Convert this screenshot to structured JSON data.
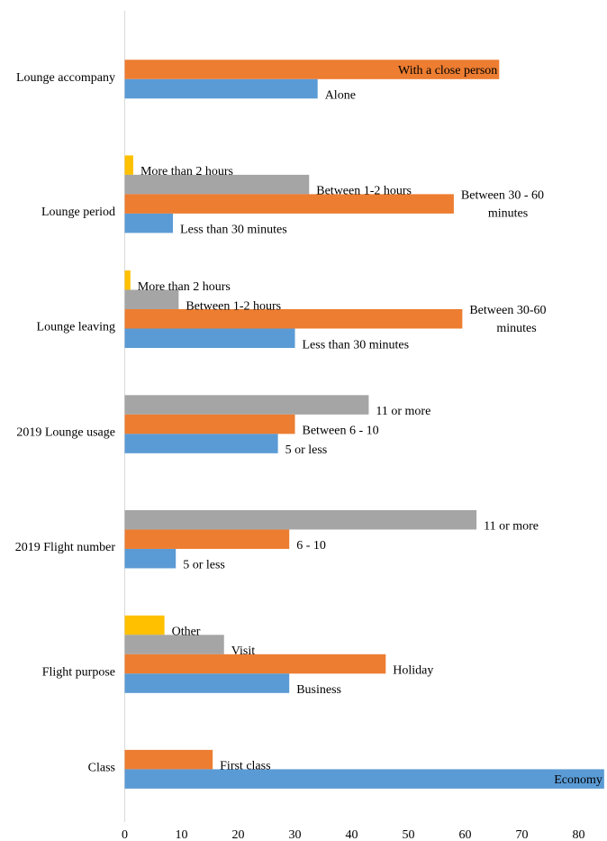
{
  "chart_data": {
    "type": "bar",
    "orientation": "horizontal",
    "xlim": [
      0,
      85
    ],
    "xticks": [
      0,
      10,
      20,
      30,
      40,
      50,
      60,
      70,
      80
    ],
    "grid": false,
    "legend": "none",
    "colors": {
      "blue": "#5b9bd5",
      "orange": "#ed7d31",
      "gray": "#a5a5a5",
      "yellow": "#ffc000"
    },
    "groups": [
      {
        "name": "Lounge accompany",
        "bars": [
          {
            "label": "With a close person",
            "value": 66,
            "color": "orange",
            "label_position": "inside-end"
          },
          {
            "label": "Alone",
            "value": 34,
            "color": "blue"
          }
        ]
      },
      {
        "name": "Lounge period",
        "bars": [
          {
            "label": "More than 2 hours",
            "value": 1.5,
            "color": "yellow"
          },
          {
            "label": "Between 1-2 hours",
            "value": 32.5,
            "color": "gray"
          },
          {
            "label": "Between 30 - 60 minutes",
            "value": 58,
            "color": "orange"
          },
          {
            "label": "Less than 30 minutes",
            "value": 8.5,
            "color": "blue"
          }
        ]
      },
      {
        "name": "Lounge leaving",
        "bars": [
          {
            "label": "More than 2 hours",
            "value": 1,
            "color": "yellow"
          },
          {
            "label": "Between 1-2 hours",
            "value": 9.5,
            "color": "gray"
          },
          {
            "label": "Between 30-60 minutes",
            "value": 59.5,
            "color": "orange"
          },
          {
            "label": "Less than 30 minutes",
            "value": 30,
            "color": "blue"
          }
        ]
      },
      {
        "name": "2019 Lounge usage",
        "bars": [
          {
            "label": "11 or more",
            "value": 43,
            "color": "gray"
          },
          {
            "label": "Between 6 - 10",
            "value": 30,
            "color": "orange"
          },
          {
            "label": "5 or less",
            "value": 27,
            "color": "blue"
          }
        ]
      },
      {
        "name": "2019 Flight number",
        "bars": [
          {
            "label": "11 or more",
            "value": 62,
            "color": "gray"
          },
          {
            "label": "6 - 10",
            "value": 29,
            "color": "orange"
          },
          {
            "label": "5 or less",
            "value": 9,
            "color": "blue"
          }
        ]
      },
      {
        "name": "Flight purpose",
        "bars": [
          {
            "label": "Other",
            "value": 7,
            "color": "yellow"
          },
          {
            "label": "Visit",
            "value": 17.5,
            "color": "gray"
          },
          {
            "label": "Holiday",
            "value": 46,
            "color": "orange"
          },
          {
            "label": "Business",
            "value": 29,
            "color": "blue"
          }
        ]
      },
      {
        "name": "Class",
        "bars": [
          {
            "label": "First class",
            "value": 15.5,
            "color": "orange"
          },
          {
            "label": "Economy",
            "value": 84.5,
            "color": "blue",
            "label_position": "inside-end"
          }
        ]
      }
    ]
  }
}
